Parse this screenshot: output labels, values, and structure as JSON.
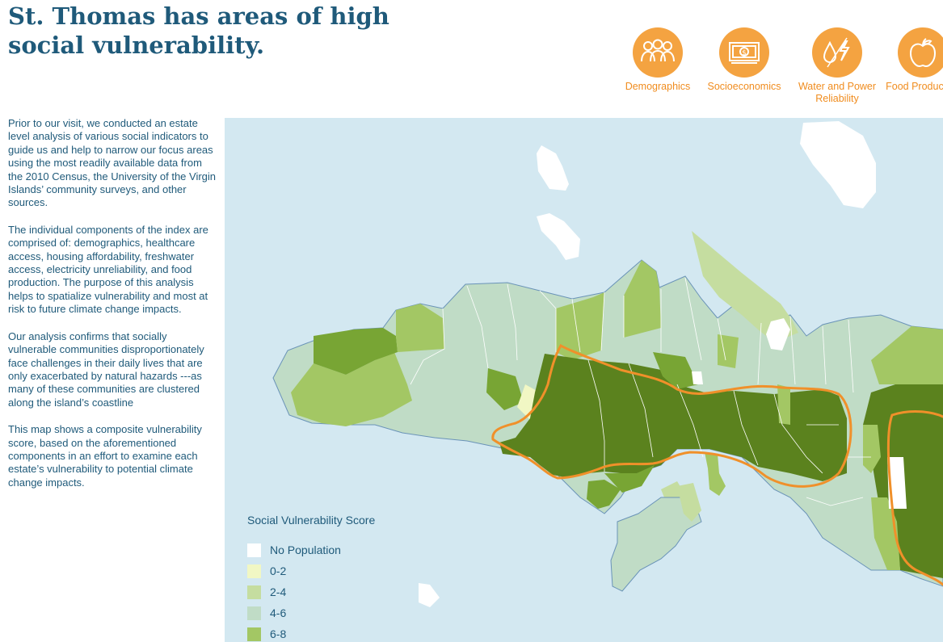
{
  "title": "St. Thomas has areas of high social vulnerability.",
  "icons": [
    {
      "name": "people-icon",
      "label": "Demographics"
    },
    {
      "name": "money-icon",
      "label": "Socioeconomics"
    },
    {
      "name": "water-power-icon",
      "label": "Water and Power Reliability"
    },
    {
      "name": "apple-icon",
      "label": "Food Production"
    }
  ],
  "paragraphs": [
    "Prior to our visit, we conducted an estate level analysis of various social indicators to guide us and help to narrow our focus areas using the most readily available data from the 2010 Census, the University of the Virgin Islands’ community surveys, and other sources.",
    "The individual components of the index are comprised of: demographics, healthcare access, housing affordability, freshwater access, electricity unreliability, and food production. The purpose of this analysis helps to spatialize vulnerability and most at risk to future climate change impacts.",
    "Our analysis confirms that socially vulnerable communities disproportionately face challenges in their daily lives that are only exacerbated by natural hazards ---as many of these communities are clustered along the island’s coastline",
    "This map shows a composite vulnerability score, based on the aforementioned components in an effort to examine each estate’s vulnerability to potential climate change impacts."
  ],
  "legend": {
    "title": "Social Vulnerability Score",
    "items": [
      {
        "label": "No Population",
        "color": "#ffffff"
      },
      {
        "label": "0-2",
        "color": "#f1f7c4"
      },
      {
        "label": "2-4",
        "color": "#c5dda0"
      },
      {
        "label": "4-6",
        "color": "#c0dcc6"
      },
      {
        "label": "6-8",
        "color": "#a3c764"
      }
    ]
  },
  "colors": {
    "water": "#d3e8f1",
    "accent": "#f4a341",
    "title": "#1f5a7a",
    "high_vulnerability": "#5b821e",
    "medium_high": "#78a534",
    "coastline_zone": "#f0902a"
  }
}
